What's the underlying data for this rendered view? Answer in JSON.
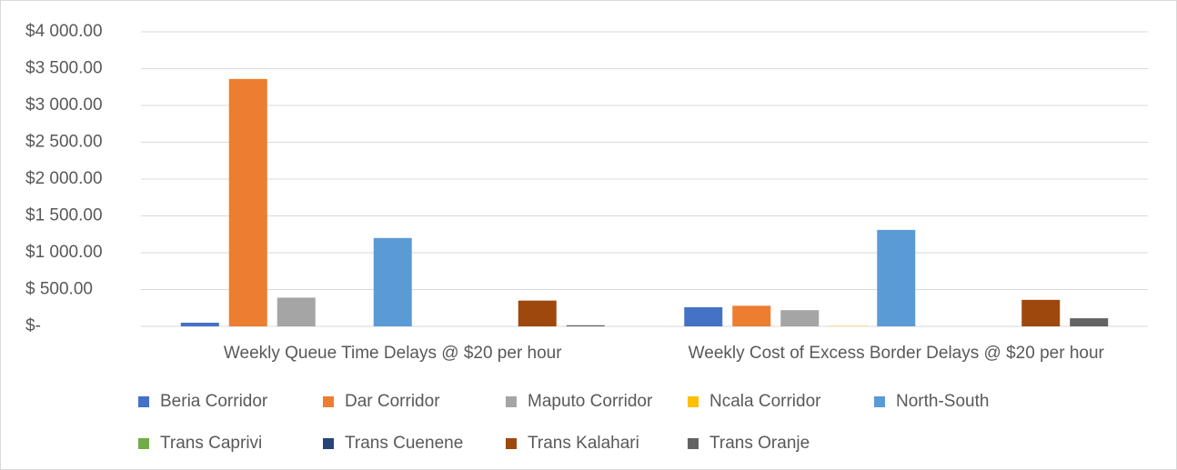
{
  "chart_data": {
    "type": "bar",
    "categories": [
      "Weekly Queue Time Delays @ $20 per hour",
      "Weekly Cost of Excess Border Delays @  $20 per hour"
    ],
    "series": [
      {
        "name": "Beria Corridor",
        "color": "#4472c4",
        "values": [
          50,
          260
        ]
      },
      {
        "name": "Dar Corridor",
        "color": "#ed7d31",
        "values": [
          3360,
          280
        ]
      },
      {
        "name": "Maputo Corridor",
        "color": "#a5a5a5",
        "values": [
          390,
          220
        ]
      },
      {
        "name": "Ncala Corridor",
        "color": "#ffc000",
        "values": [
          0,
          5
        ]
      },
      {
        "name": "North-South",
        "color": "#5b9bd5",
        "values": [
          1200,
          1310
        ]
      },
      {
        "name": "Trans Caprivi",
        "color": "#70ad47",
        "values": [
          0,
          0
        ]
      },
      {
        "name": "Trans Cuenene",
        "color": "#264478",
        "values": [
          0,
          0
        ]
      },
      {
        "name": "Trans Kalahari",
        "color": "#9e480e",
        "values": [
          350,
          360
        ]
      },
      {
        "name": "Trans Oranje",
        "color": "#636363",
        "values": [
          15,
          110
        ]
      }
    ],
    "ylim": [
      0,
      4000
    ],
    "yticks": [
      {
        "value": 0,
        "label": "$-"
      },
      {
        "value": 500,
        "label": "$ 500.00"
      },
      {
        "value": 1000,
        "label": "$1 000.00"
      },
      {
        "value": 1500,
        "label": "$1 500.00"
      },
      {
        "value": 2000,
        "label": "$2 000.00"
      },
      {
        "value": 2500,
        "label": "$2 500.00"
      },
      {
        "value": 3000,
        "label": "$3 000.00"
      },
      {
        "value": 3500,
        "label": "$3 500.00"
      },
      {
        "value": 4000,
        "label": "$4 000.00"
      }
    ],
    "grid": true,
    "legend": "bottom"
  }
}
